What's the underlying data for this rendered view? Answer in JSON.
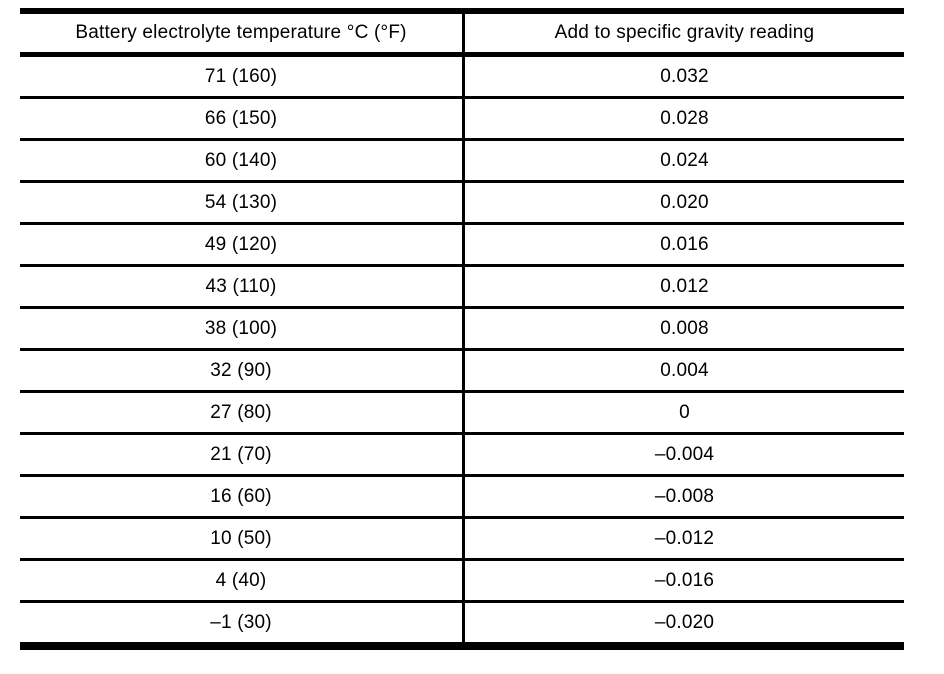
{
  "table": {
    "columns": [
      "Battery electrolyte temperature °C (°F)",
      "Add to specific gravity reading"
    ],
    "rows": [
      [
        "71 (160)",
        "0.032"
      ],
      [
        "66 (150)",
        "0.028"
      ],
      [
        "60 (140)",
        "0.024"
      ],
      [
        "54 (130)",
        "0.020"
      ],
      [
        "49 (120)",
        "0.016"
      ],
      [
        "43 (110)",
        "0.012"
      ],
      [
        "38 (100)",
        "0.008"
      ],
      [
        "32 (90)",
        "0.004"
      ],
      [
        "27 (80)",
        "0"
      ],
      [
        "21 (70)",
        "–0.004"
      ],
      [
        "16 (60)",
        "–0.008"
      ],
      [
        "10 (50)",
        "–0.012"
      ],
      [
        "4 (40)",
        "–0.016"
      ],
      [
        "–1 (30)",
        "–0.020"
      ]
    ]
  },
  "colors": {
    "background": "#ffffff",
    "line": "#000000",
    "text": "#000000"
  }
}
